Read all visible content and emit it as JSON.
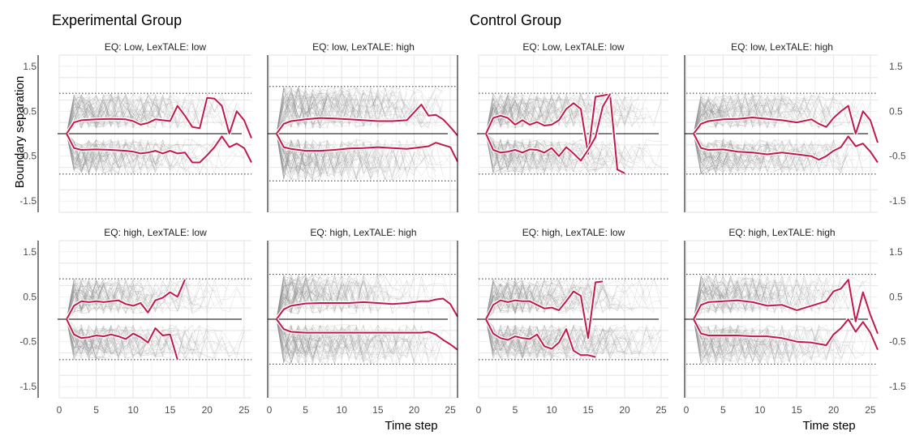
{
  "figure": {
    "group_titles": [
      "Experimental Group",
      "Control Group"
    ],
    "ylabel": "Boundary separation",
    "xlabel": "Time step",
    "colors": {
      "mean": "#C0194A",
      "mean_halo": "#ffffff",
      "trace": "#8a8a8a",
      "grid": "#e8e8e8",
      "axis": "#000000"
    }
  },
  "chart_data": [
    {
      "type": "line",
      "group": "Experimental Group",
      "title": "EQ: Low, LexTALE: low",
      "xlim": [
        0,
        26
      ],
      "ylim": [
        -1.5,
        1.5
      ],
      "xticks": [
        0,
        5,
        10,
        15,
        20,
        25
      ],
      "yticks": [
        -1.5,
        -0.5,
        0.5,
        1.5
      ],
      "dotted_bounds": [
        0.9,
        -0.9
      ],
      "upper_mean": {
        "x": [
          1,
          2,
          3,
          5,
          7,
          9,
          10,
          11,
          12,
          13,
          14,
          15,
          16,
          17,
          18,
          19,
          20,
          21,
          22,
          23,
          24,
          25,
          26
        ],
        "y": [
          0,
          0.25,
          0.3,
          0.32,
          0.33,
          0.32,
          0.28,
          0.2,
          0.24,
          0.32,
          0.3,
          0.28,
          0.62,
          0.4,
          0.15,
          0.12,
          0.8,
          0.78,
          0.62,
          0,
          0.5,
          0.3,
          -0.1
        ]
      },
      "lower_mean": {
        "x": [
          1,
          2,
          3,
          5,
          7,
          9,
          10,
          11,
          12,
          13,
          14,
          15,
          16,
          17,
          18,
          19,
          20,
          21,
          22,
          23,
          24,
          25,
          26
        ],
        "y": [
          0,
          -0.32,
          -0.36,
          -0.35,
          -0.36,
          -0.38,
          -0.4,
          -0.44,
          -0.42,
          -0.38,
          -0.44,
          -0.38,
          -0.44,
          -0.42,
          -0.64,
          -0.64,
          -0.48,
          -0.3,
          -0.06,
          -0.3,
          -0.22,
          -0.32,
          -0.64
        ]
      }
    },
    {
      "type": "line",
      "group": "Experimental Group",
      "title": "EQ: low, LexTALE: high",
      "xlim": [
        0,
        26
      ],
      "ylim": [
        -1.5,
        1.5
      ],
      "xticks": [
        0,
        5,
        10,
        15,
        20,
        25
      ],
      "yticks": [
        -1.5,
        -0.5,
        0.5,
        1.5
      ],
      "dotted_bounds": [
        1.05,
        -1.05
      ],
      "upper_mean": {
        "x": [
          1,
          2,
          3,
          5,
          7,
          9,
          11,
          13,
          15,
          17,
          19,
          21,
          22,
          23,
          24,
          25,
          26
        ],
        "y": [
          0,
          0.22,
          0.28,
          0.32,
          0.35,
          0.34,
          0.32,
          0.3,
          0.28,
          0.28,
          0.3,
          0.65,
          0.4,
          0.42,
          0.32,
          0.15,
          -0.04
        ]
      },
      "lower_mean": {
        "x": [
          1,
          2,
          3,
          5,
          7,
          9,
          11,
          13,
          15,
          17,
          19,
          21,
          22,
          23,
          24,
          25,
          26
        ],
        "y": [
          0,
          -0.3,
          -0.34,
          -0.38,
          -0.38,
          -0.36,
          -0.33,
          -0.32,
          -0.3,
          -0.32,
          -0.34,
          -0.3,
          -0.28,
          -0.2,
          -0.25,
          -0.3,
          -0.62
        ]
      }
    },
    {
      "type": "line",
      "group": "Control Group",
      "title": "EQ: Low, LexTALE: low",
      "xlim": [
        0,
        26
      ],
      "ylim": [
        -1.5,
        1.5
      ],
      "xticks": [
        0,
        5,
        10,
        15,
        20,
        25
      ],
      "yticks": [
        -1.5,
        -0.5,
        0.5,
        1.5
      ],
      "dotted_bounds": [
        0.9,
        -0.9
      ],
      "upper_mean": {
        "x": [
          1,
          2,
          3,
          4,
          5,
          6,
          7,
          8,
          9,
          10,
          11,
          12,
          13,
          14,
          15,
          16,
          17,
          18,
          19,
          20
        ],
        "y": [
          0,
          0.35,
          0.4,
          0.35,
          0.2,
          0.3,
          0.2,
          0.26,
          0.18,
          0.2,
          0.3,
          0.55,
          0.68,
          0.55,
          -0.45,
          0.82,
          0.85,
          0.88,
          -0.8,
          -0.88
        ]
      },
      "lower_mean": {
        "x": [
          1,
          2,
          3,
          4,
          5,
          6,
          7,
          8,
          9,
          10,
          11,
          12,
          13,
          14,
          15,
          16,
          17,
          18
        ],
        "y": [
          0,
          -0.36,
          -0.42,
          -0.4,
          -0.36,
          -0.42,
          -0.35,
          -0.36,
          -0.42,
          -0.32,
          -0.5,
          -0.3,
          -0.44,
          -0.6,
          -0.36,
          -0.08,
          0.6,
          0.88
        ]
      }
    },
    {
      "type": "line",
      "group": "Control Group",
      "title": "EQ: low, LexTALE: high",
      "xlim": [
        0,
        26
      ],
      "ylim": [
        -1.5,
        1.5
      ],
      "xticks": [
        0,
        5,
        10,
        15,
        20,
        25
      ],
      "yticks": [
        -1.5,
        -0.5,
        0.5,
        1.5
      ],
      "dotted_bounds": [
        0.9,
        -0.9
      ],
      "upper_mean": {
        "x": [
          1,
          2,
          3,
          5,
          7,
          9,
          11,
          13,
          15,
          17,
          18,
          19,
          20,
          21,
          22,
          23,
          24,
          25,
          26
        ],
        "y": [
          0,
          0.22,
          0.28,
          0.32,
          0.33,
          0.36,
          0.33,
          0.3,
          0.25,
          0.32,
          0.22,
          0.15,
          0.35,
          0.5,
          0.62,
          0,
          0.5,
          0.3,
          -0.2
        ]
      },
      "lower_mean": {
        "x": [
          1,
          2,
          3,
          5,
          7,
          9,
          11,
          13,
          15,
          17,
          18,
          19,
          20,
          21,
          22,
          23,
          24,
          25,
          26
        ],
        "y": [
          0,
          -0.32,
          -0.36,
          -0.35,
          -0.4,
          -0.42,
          -0.46,
          -0.42,
          -0.46,
          -0.5,
          -0.58,
          -0.5,
          -0.38,
          -0.3,
          -0.06,
          -0.28,
          -0.22,
          -0.4,
          -0.64
        ]
      }
    },
    {
      "type": "line",
      "group": "Experimental Group",
      "title": "EQ: high, LexTALE: low",
      "xlim": [
        0,
        26
      ],
      "ylim": [
        -1.5,
        1.5
      ],
      "xticks": [
        0,
        5,
        10,
        15,
        20,
        25
      ],
      "yticks": [
        -1.5,
        -0.5,
        0.5,
        1.5
      ],
      "dotted_bounds": [
        0.9,
        -0.9
      ],
      "upper_mean": {
        "x": [
          1,
          2,
          3,
          4,
          5,
          6,
          7,
          8,
          9,
          10,
          11,
          12,
          13,
          14,
          15,
          16,
          17
        ],
        "y": [
          0,
          0.3,
          0.4,
          0.38,
          0.4,
          0.38,
          0.4,
          0.42,
          0.34,
          0.3,
          0.36,
          0.15,
          0.42,
          0.48,
          0.6,
          0.5,
          0.88
        ]
      },
      "lower_mean": {
        "x": [
          1,
          2,
          3,
          4,
          5,
          6,
          7,
          8,
          9,
          10,
          11,
          12,
          13,
          14,
          15,
          16
        ],
        "y": [
          0,
          -0.34,
          -0.42,
          -0.4,
          -0.36,
          -0.38,
          -0.34,
          -0.38,
          -0.44,
          -0.32,
          -0.4,
          -0.52,
          -0.2,
          -0.36,
          -0.34,
          -0.9
        ]
      }
    },
    {
      "type": "line",
      "group": "Experimental Group",
      "title": "EQ: high, LexTALE: high",
      "xlim": [
        0,
        26
      ],
      "ylim": [
        -1.5,
        1.5
      ],
      "xticks": [
        0,
        5,
        10,
        15,
        20,
        25
      ],
      "yticks": [
        -1.5,
        -0.5,
        0.5,
        1.5
      ],
      "dotted_bounds": [
        1.0,
        -1.0
      ],
      "upper_mean": {
        "x": [
          1,
          2,
          3,
          5,
          7,
          9,
          11,
          13,
          15,
          17,
          19,
          21,
          22,
          23,
          24,
          25,
          26
        ],
        "y": [
          0,
          0.22,
          0.3,
          0.35,
          0.36,
          0.36,
          0.36,
          0.38,
          0.36,
          0.34,
          0.36,
          0.4,
          0.4,
          0.44,
          0.46,
          0.34,
          0.06
        ]
      },
      "lower_mean": {
        "x": [
          1,
          2,
          3,
          5,
          7,
          9,
          11,
          13,
          15,
          17,
          19,
          21,
          22,
          23,
          24,
          25,
          26
        ],
        "y": [
          0,
          -0.22,
          -0.28,
          -0.3,
          -0.3,
          -0.3,
          -0.3,
          -0.3,
          -0.3,
          -0.3,
          -0.3,
          -0.3,
          -0.28,
          -0.34,
          -0.46,
          -0.56,
          -0.68
        ]
      }
    },
    {
      "type": "line",
      "group": "Control Group",
      "title": "EQ: high, LexTALE: low",
      "xlim": [
        0,
        26
      ],
      "ylim": [
        -1.5,
        1.5
      ],
      "xticks": [
        0,
        5,
        10,
        15,
        20,
        25
      ],
      "yticks": [
        -1.5,
        -0.5,
        0.5,
        1.5
      ],
      "dotted_bounds": [
        0.9,
        -0.9
      ],
      "upper_mean": {
        "x": [
          1,
          2,
          3,
          4,
          5,
          6,
          7,
          8,
          9,
          10,
          11,
          12,
          13,
          14,
          15,
          16,
          17
        ],
        "y": [
          0,
          0.32,
          0.42,
          0.38,
          0.42,
          0.4,
          0.4,
          0.32,
          0.24,
          0.26,
          0.2,
          0.4,
          0.62,
          0.52,
          -0.42,
          0.82,
          0.84
        ]
      },
      "lower_mean": {
        "x": [
          1,
          2,
          3,
          4,
          5,
          6,
          7,
          8,
          9,
          10,
          11,
          12,
          13,
          14,
          15,
          16
        ],
        "y": [
          0,
          -0.32,
          -0.42,
          -0.46,
          -0.38,
          -0.42,
          -0.44,
          -0.34,
          -0.6,
          -0.66,
          -0.52,
          -0.22,
          -0.7,
          -0.8,
          -0.8,
          -0.84
        ]
      }
    },
    {
      "type": "line",
      "group": "Control Group",
      "title": "EQ: high, LexTALE: high",
      "xlim": [
        0,
        26
      ],
      "ylim": [
        -1.5,
        1.5
      ],
      "xticks": [
        0,
        5,
        10,
        15,
        20,
        25
      ],
      "yticks": [
        -1.5,
        -0.5,
        0.5,
        1.5
      ],
      "dotted_bounds": [
        1.0,
        -1.0
      ],
      "upper_mean": {
        "x": [
          1,
          2,
          3,
          5,
          7,
          9,
          11,
          13,
          15,
          17,
          19,
          20,
          21,
          22,
          23,
          24,
          25,
          26
        ],
        "y": [
          0,
          0.32,
          0.38,
          0.4,
          0.42,
          0.38,
          0.3,
          0.32,
          0.2,
          0.3,
          0.4,
          0.62,
          0.68,
          0.88,
          -0.05,
          0.6,
          0.1,
          -0.32
        ]
      },
      "lower_mean": {
        "x": [
          1,
          2,
          3,
          5,
          7,
          9,
          11,
          13,
          15,
          17,
          19,
          20,
          21,
          22,
          23,
          24,
          25,
          26
        ],
        "y": [
          0,
          -0.32,
          -0.36,
          -0.36,
          -0.36,
          -0.38,
          -0.38,
          -0.42,
          -0.5,
          -0.52,
          -0.58,
          -0.34,
          -0.2,
          0,
          -0.28,
          -0.06,
          -0.3,
          -0.68
        ]
      }
    }
  ]
}
